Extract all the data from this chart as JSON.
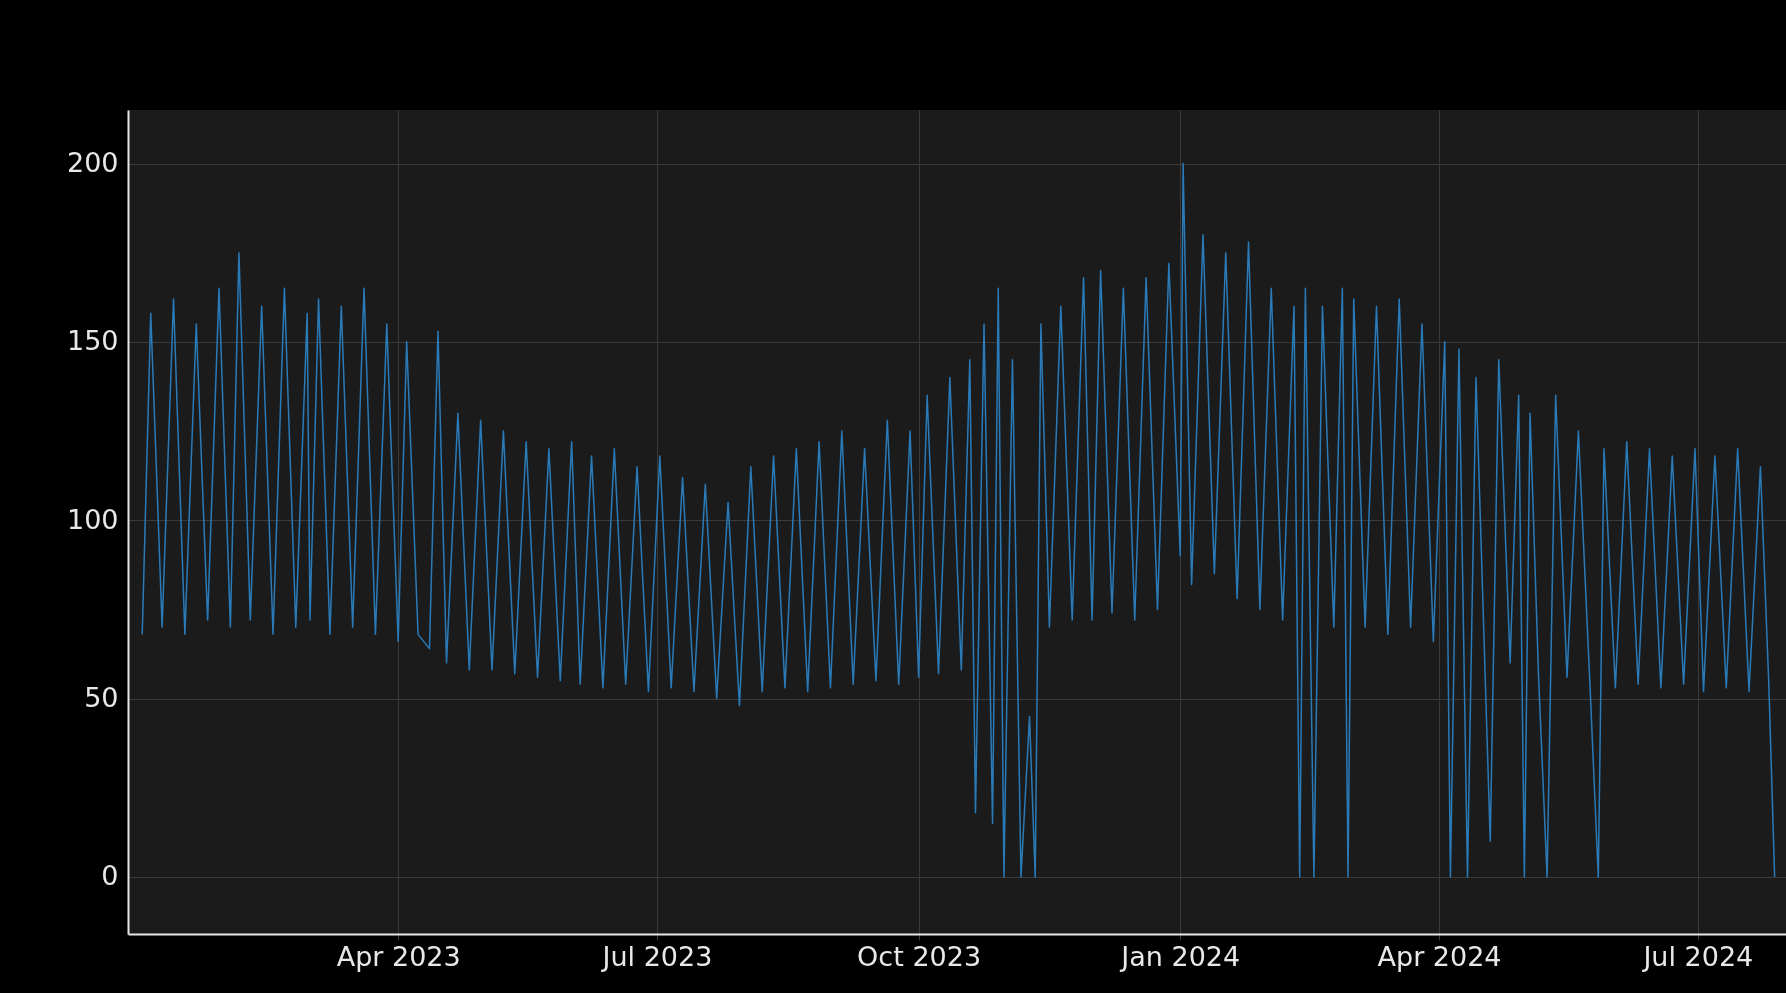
{
  "chart_data": {
    "type": "line",
    "color": "#2a7ab8",
    "grid": true,
    "xlim": [
      "2022-12-27",
      "2024-08-01"
    ],
    "xticks": [
      {
        "value": "2023-04-01",
        "label": "Apr 2023"
      },
      {
        "value": "2023-07-01",
        "label": "Jul 2023"
      },
      {
        "value": "2023-10-01",
        "label": "Oct 2023"
      },
      {
        "value": "2024-01-01",
        "label": "Jan 2024"
      },
      {
        "value": "2024-04-01",
        "label": "Apr 2024"
      },
      {
        "value": "2024-07-01",
        "label": "Jul 2024"
      }
    ],
    "ylim": [
      -16,
      215
    ],
    "yticks": [
      0,
      50,
      100,
      150,
      200
    ],
    "x": [
      "2023-01-01",
      "2023-01-04",
      "2023-01-08",
      "2023-01-12",
      "2023-01-16",
      "2023-01-20",
      "2023-01-24",
      "2023-01-28",
      "2023-02-01",
      "2023-02-04",
      "2023-02-08",
      "2023-02-12",
      "2023-02-16",
      "2023-02-20",
      "2023-02-24",
      "2023-02-28",
      "2023-03-01",
      "2023-03-04",
      "2023-03-08",
      "2023-03-12",
      "2023-03-16",
      "2023-03-20",
      "2023-03-24",
      "2023-03-28",
      "2023-04-01",
      "2023-04-04",
      "2023-04-08",
      "2023-04-12",
      "2023-04-15",
      "2023-04-18",
      "2023-04-22",
      "2023-04-26",
      "2023-04-30",
      "2023-05-04",
      "2023-05-08",
      "2023-05-12",
      "2023-05-16",
      "2023-05-20",
      "2023-05-24",
      "2023-05-28",
      "2023-06-01",
      "2023-06-04",
      "2023-06-08",
      "2023-06-12",
      "2023-06-16",
      "2023-06-20",
      "2023-06-24",
      "2023-06-28",
      "2023-07-02",
      "2023-07-06",
      "2023-07-10",
      "2023-07-14",
      "2023-07-18",
      "2023-07-22",
      "2023-07-26",
      "2023-07-30",
      "2023-08-03",
      "2023-08-07",
      "2023-08-11",
      "2023-08-15",
      "2023-08-19",
      "2023-08-23",
      "2023-08-27",
      "2023-08-31",
      "2023-09-04",
      "2023-09-08",
      "2023-09-12",
      "2023-09-16",
      "2023-09-20",
      "2023-09-24",
      "2023-09-28",
      "2023-10-01",
      "2023-10-04",
      "2023-10-08",
      "2023-10-12",
      "2023-10-16",
      "2023-10-19",
      "2023-10-21",
      "2023-10-24",
      "2023-10-27",
      "2023-10-29",
      "2023-10-31",
      "2023-11-03",
      "2023-11-06",
      "2023-11-09",
      "2023-11-11",
      "2023-11-13",
      "2023-11-16",
      "2023-11-20",
      "2023-11-24",
      "2023-11-28",
      "2023-12-01",
      "2023-12-04",
      "2023-12-08",
      "2023-12-12",
      "2023-12-16",
      "2023-12-20",
      "2023-12-24",
      "2023-12-28",
      "2024-01-01",
      "2024-01-02",
      "2024-01-05",
      "2024-01-09",
      "2024-01-13",
      "2024-01-17",
      "2024-01-21",
      "2024-01-25",
      "2024-01-29",
      "2024-02-02",
      "2024-02-06",
      "2024-02-10",
      "2024-02-12",
      "2024-02-14",
      "2024-02-17",
      "2024-02-20",
      "2024-02-24",
      "2024-02-27",
      "2024-02-29",
      "2024-03-02",
      "2024-03-06",
      "2024-03-10",
      "2024-03-14",
      "2024-03-18",
      "2024-03-22",
      "2024-03-26",
      "2024-03-30",
      "2024-04-03",
      "2024-04-05",
      "2024-04-08",
      "2024-04-11",
      "2024-04-14",
      "2024-04-17",
      "2024-04-19",
      "2024-04-22",
      "2024-04-26",
      "2024-04-29",
      "2024-05-01",
      "2024-05-03",
      "2024-05-06",
      "2024-05-09",
      "2024-05-12",
      "2024-05-16",
      "2024-05-20",
      "2024-05-24",
      "2024-05-27",
      "2024-05-29",
      "2024-06-02",
      "2024-06-06",
      "2024-06-10",
      "2024-06-14",
      "2024-06-18",
      "2024-06-22",
      "2024-06-26",
      "2024-06-30",
      "2024-07-03",
      "2024-07-07",
      "2024-07-11",
      "2024-07-15",
      "2024-07-19",
      "2024-07-23",
      "2024-07-26",
      "2024-07-28"
    ],
    "values": [
      68,
      158,
      70,
      162,
      68,
      155,
      72,
      165,
      70,
      175,
      72,
      160,
      68,
      165,
      70,
      158,
      72,
      162,
      68,
      160,
      70,
      165,
      68,
      155,
      66,
      150,
      68,
      64,
      153,
      60,
      130,
      58,
      128,
      58,
      125,
      57,
      122,
      56,
      120,
      55,
      122,
      54,
      118,
      53,
      120,
      54,
      115,
      52,
      118,
      53,
      112,
      52,
      110,
      50,
      105,
      48,
      115,
      52,
      118,
      53,
      120,
      52,
      122,
      53,
      125,
      54,
      120,
      55,
      128,
      54,
      125,
      56,
      135,
      57,
      140,
      58,
      145,
      18,
      155,
      15,
      165,
      0,
      145,
      0,
      45,
      0,
      155,
      70,
      160,
      72,
      168,
      72,
      170,
      74,
      165,
      72,
      168,
      75,
      172,
      90,
      200,
      82,
      180,
      85,
      175,
      78,
      178,
      75,
      165,
      72,
      160,
      0,
      165,
      0,
      160,
      70,
      165,
      0,
      162,
      70,
      160,
      68,
      162,
      70,
      155,
      66,
      150,
      0,
      148,
      0,
      140,
      62,
      10,
      145,
      60,
      135,
      0,
      130,
      56,
      0,
      135,
      56,
      125,
      55,
      0,
      120,
      53,
      122,
      54,
      120,
      53,
      118,
      54,
      120,
      52,
      118,
      53,
      120,
      52,
      115,
      53,
      0
    ]
  }
}
